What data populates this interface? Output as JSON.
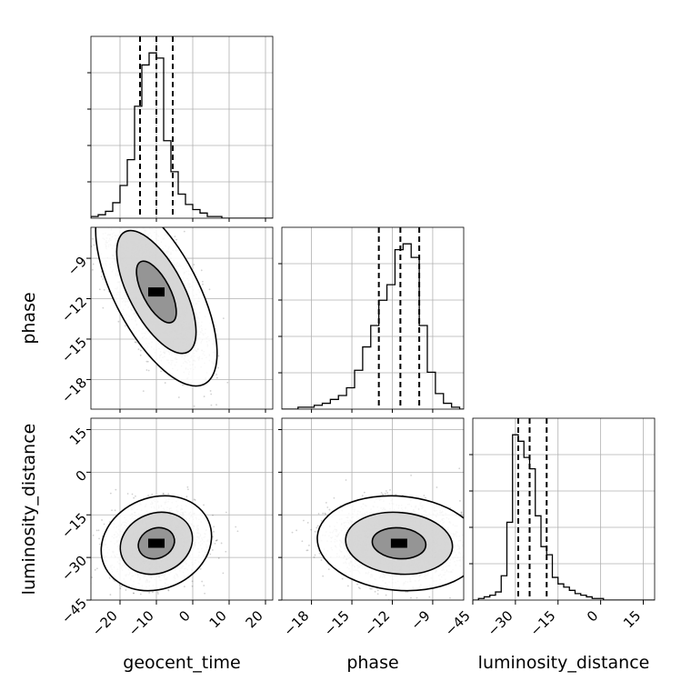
{
  "chart_data": {
    "type": "corner",
    "parameters": [
      "geocent_time",
      "phase",
      "luminosity_distance"
    ],
    "axis_labels": {
      "x": [
        "geocent_time",
        "phase",
        "luminosity_distance"
      ],
      "y": [
        "",
        "phase",
        "luminosity_distance"
      ]
    },
    "ranges": {
      "geocent_time": [
        -28,
        22
      ],
      "phase": [
        -20.2,
        -6.7
      ],
      "luminosity_distance": [
        -45,
        19
      ]
    },
    "ticks": {
      "geocent_time": {
        "values": [
          -20,
          -10,
          0,
          10,
          20
        ],
        "labels": [
          "−20",
          "−10",
          "0",
          "10",
          "20"
        ]
      },
      "phase": {
        "values": [
          -18,
          -15,
          -12,
          -9
        ],
        "labels": [
          "−18",
          "−15",
          "−12",
          "−9"
        ]
      },
      "luminosity_distance": {
        "values": [
          -45,
          -30,
          -15,
          0,
          15
        ],
        "labels": [
          "−45",
          "−30",
          "−15",
          "0",
          "15"
        ]
      }
    },
    "quantiles": {
      "geocent_time": [
        -14.5,
        -10,
        -5.5
      ],
      "phase": [
        -13.0,
        -11.4,
        -10.0
      ],
      "luminosity_distance": [
        -29,
        -25,
        -19
      ]
    },
    "histograms": {
      "geocent_time": {
        "edges": [
          -28,
          -26,
          -24,
          -22,
          -20,
          -18,
          -16,
          -14,
          -12,
          -10,
          -8,
          -6,
          -4,
          -2,
          0,
          2,
          4,
          6,
          8,
          10,
          12,
          14,
          16,
          18,
          20,
          22
        ],
        "counts": [
          1,
          2,
          4,
          9,
          19,
          34,
          65,
          89,
          96,
          93,
          45,
          27,
          14,
          8,
          5,
          3,
          1,
          1,
          0,
          0,
          0,
          0,
          0,
          0,
          0
        ]
      },
      "phase": {
        "edges": [
          -20.2,
          -19.6,
          -19.0,
          -18.4,
          -17.8,
          -17.2,
          -16.6,
          -16.0,
          -15.4,
          -14.8,
          -14.2,
          -13.6,
          -13.0,
          -12.4,
          -11.8,
          -11.2,
          -10.6,
          -10.0,
          -9.4,
          -8.8,
          -8.2,
          -7.6,
          -7.0,
          -6.7
        ],
        "counts": [
          0,
          0,
          1,
          1,
          2,
          3,
          5,
          7,
          11,
          20,
          32,
          43,
          56,
          64,
          82,
          85,
          78,
          43,
          19,
          8,
          3,
          1,
          0
        ]
      },
      "luminosity_distance": {
        "edges": [
          -45,
          -43,
          -41,
          -39,
          -37,
          -35,
          -33,
          -31,
          -29,
          -27,
          -25,
          -23,
          -21,
          -19,
          -17,
          -15,
          -13,
          -11,
          -9,
          -7,
          -5,
          -3,
          -1,
          1,
          3,
          5,
          7,
          9,
          11,
          13,
          15,
          17,
          19
        ],
        "counts": [
          0,
          1,
          2,
          3,
          5,
          15,
          48,
          102,
          98,
          88,
          81,
          52,
          33,
          28,
          14,
          10,
          8,
          6,
          4,
          3,
          2,
          1,
          1,
          0,
          0,
          0,
          0,
          0,
          0,
          0,
          0,
          0
        ]
      }
    },
    "density_2d": [
      {
        "x": "geocent_time",
        "y": "phase",
        "peak": [
          -10,
          -11.5
        ],
        "spread": [
          5.5,
          2.3
        ],
        "correlation": -0.65,
        "level_fractions": [
          0.39,
          0.86,
          0.99
        ],
        "samples": 2600
      },
      {
        "x": "geocent_time",
        "y": "luminosity_distance",
        "peak": [
          -10,
          -25
        ],
        "spread": [
          5.0,
          5.5
        ],
        "correlation": 0.15,
        "level_fractions": [
          0.39,
          0.86,
          0.99
        ],
        "samples": 2600
      },
      {
        "x": "phase",
        "y": "luminosity_distance",
        "peak": [
          -11.5,
          -25
        ],
        "spread": [
          2.0,
          5.5
        ],
        "correlation": -0.1,
        "level_fractions": [
          0.39,
          0.86,
          0.99
        ],
        "samples": 2600
      }
    ],
    "grid": true
  }
}
